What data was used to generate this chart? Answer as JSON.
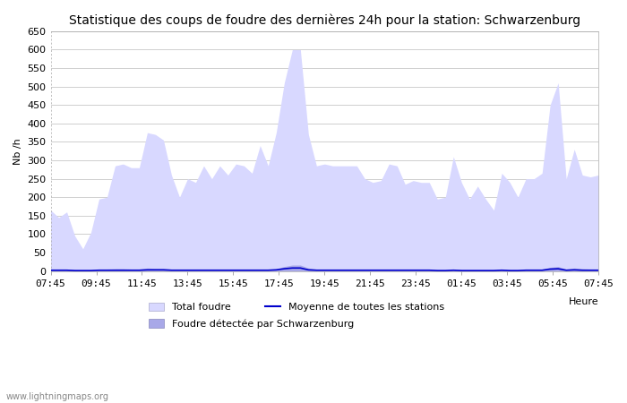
{
  "title": "Statistique des coups de foudre des dernières 24h pour la station: Schwarzenburg",
  "xlabel": "Heure",
  "ylabel": "Nb /h",
  "watermark": "www.lightningmaps.org",
  "xlim_labels": [
    "07:45",
    "09:45",
    "11:45",
    "13:45",
    "15:45",
    "17:45",
    "19:45",
    "21:45",
    "23:45",
    "01:45",
    "03:45",
    "05:45",
    "07:45"
  ],
  "ylim": [
    0,
    650
  ],
  "yticks": [
    0,
    50,
    100,
    150,
    200,
    250,
    300,
    350,
    400,
    450,
    500,
    550,
    600,
    650
  ],
  "background_color": "#ffffff",
  "plot_bg_color": "#ffffff",
  "grid_color": "#c8c8c8",
  "total_foudre_color": "#d8d8ff",
  "total_foudre_edge": "#d8d8ff",
  "detected_color": "#a8a8e8",
  "detected_edge": "#a8a8e8",
  "moyenne_color": "#0000cc",
  "legend_total_label": "Total foudre",
  "legend_moyenne_label": "Moyenne de toutes les stations",
  "legend_detected_label": "Foudre détectée par Schwarzenburg",
  "title_fontsize": 10,
  "axis_fontsize": 8,
  "tick_fontsize": 8,
  "total_foudre": [
    165,
    145,
    160,
    95,
    60,
    105,
    195,
    200,
    285,
    290,
    280,
    280,
    375,
    370,
    355,
    260,
    200,
    250,
    240,
    285,
    250,
    285,
    260,
    290,
    285,
    265,
    340,
    285,
    375,
    510,
    600,
    600,
    370,
    285,
    290,
    285,
    285,
    285,
    285,
    250,
    240,
    245,
    290,
    285,
    235,
    245,
    240,
    240,
    195,
    200,
    310,
    240,
    195,
    230,
    195,
    165,
    265,
    240,
    200,
    250,
    250,
    265,
    450,
    510,
    250,
    330,
    260,
    255,
    260
  ],
  "detected": [
    5,
    4,
    5,
    3,
    2,
    3,
    5,
    5,
    6,
    6,
    5,
    5,
    8,
    7,
    7,
    5,
    5,
    5,
    5,
    5,
    5,
    5,
    5,
    5,
    5,
    5,
    5,
    5,
    6,
    12,
    16,
    16,
    8,
    5,
    5,
    5,
    5,
    5,
    5,
    5,
    5,
    5,
    5,
    5,
    4,
    5,
    4,
    4,
    3,
    3,
    5,
    3,
    3,
    3,
    3,
    3,
    5,
    3,
    3,
    4,
    4,
    5,
    10,
    12,
    5,
    8,
    6,
    5,
    5
  ],
  "moyenne": [
    2,
    2,
    2,
    1,
    1,
    1,
    2,
    2,
    2,
    2,
    2,
    2,
    3,
    3,
    3,
    2,
    2,
    2,
    2,
    2,
    2,
    2,
    2,
    2,
    2,
    2,
    2,
    2,
    3,
    6,
    8,
    8,
    3,
    2,
    2,
    2,
    2,
    2,
    2,
    2,
    2,
    2,
    2,
    2,
    2,
    2,
    2,
    2,
    1,
    1,
    2,
    1,
    1,
    1,
    1,
    1,
    2,
    1,
    1,
    2,
    2,
    2,
    5,
    6,
    2,
    3,
    2,
    2,
    2
  ]
}
